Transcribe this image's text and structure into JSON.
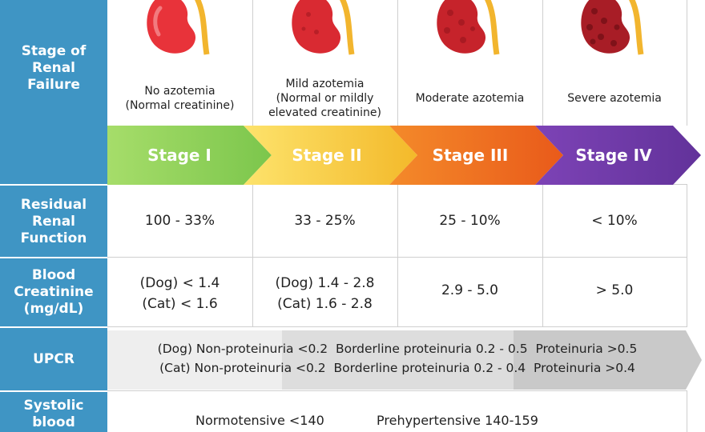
{
  "colors": {
    "sidebar": "#3f95c4",
    "stage_1": "#8fd35a",
    "stage_2": "#f7c832",
    "stage_3": "#ef6c1d",
    "stage_4": "#6e3aa3",
    "upcr_light": "#ececec",
    "upcr_mid": "#dcdcdc",
    "upcr_dark": "#c7c7c7"
  },
  "rows": {
    "stage": "Stage of\nRenal\nFailure",
    "residual": "Residual\nRenal\nFunction",
    "creatinine": "Blood\nCreatinine\n(mg/dL)",
    "upcr": "UPCR",
    "systolic": "Systolic\nblood"
  },
  "stages": [
    {
      "label": "Stage I",
      "description": "No azotemia\n(Normal creatinine)",
      "residual": "100 - 33%",
      "creatinine": "(Dog) < 1.4\n(Cat) < 1.6",
      "icon": "kidney-icon"
    },
    {
      "label": "Stage II",
      "description": "Mild azotemia\n(Normal or mildly\nelevated creatinine)",
      "residual": "33 - 25%",
      "creatinine": "(Dog) 1.4 - 2.8\n(Cat) 1.6 - 2.8",
      "icon": "kidney-icon"
    },
    {
      "label": "Stage III",
      "description": "Moderate azotemia",
      "residual": "25 - 10%",
      "creatinine": "2.9 - 5.0",
      "icon": "kidney-icon"
    },
    {
      "label": "Stage IV",
      "description": "Severe azotemia",
      "residual": "< 10%",
      "creatinine": "> 5.0",
      "icon": "kidney-icon"
    }
  ],
  "upcr": {
    "dog": "(Dog) Non-proteinuria <0.2  Borderline proteinuria 0.2 - 0.5  Proteinuria >0.5",
    "cat": "(Cat) Non-proteinuria <0.2  Borderline proteinuria 0.2 - 0.4  Proteinuria >0.4"
  },
  "blood_pressure": {
    "normotensive": "Normotensive <140",
    "prehypertensive": "Prehypertensive 140-159"
  }
}
